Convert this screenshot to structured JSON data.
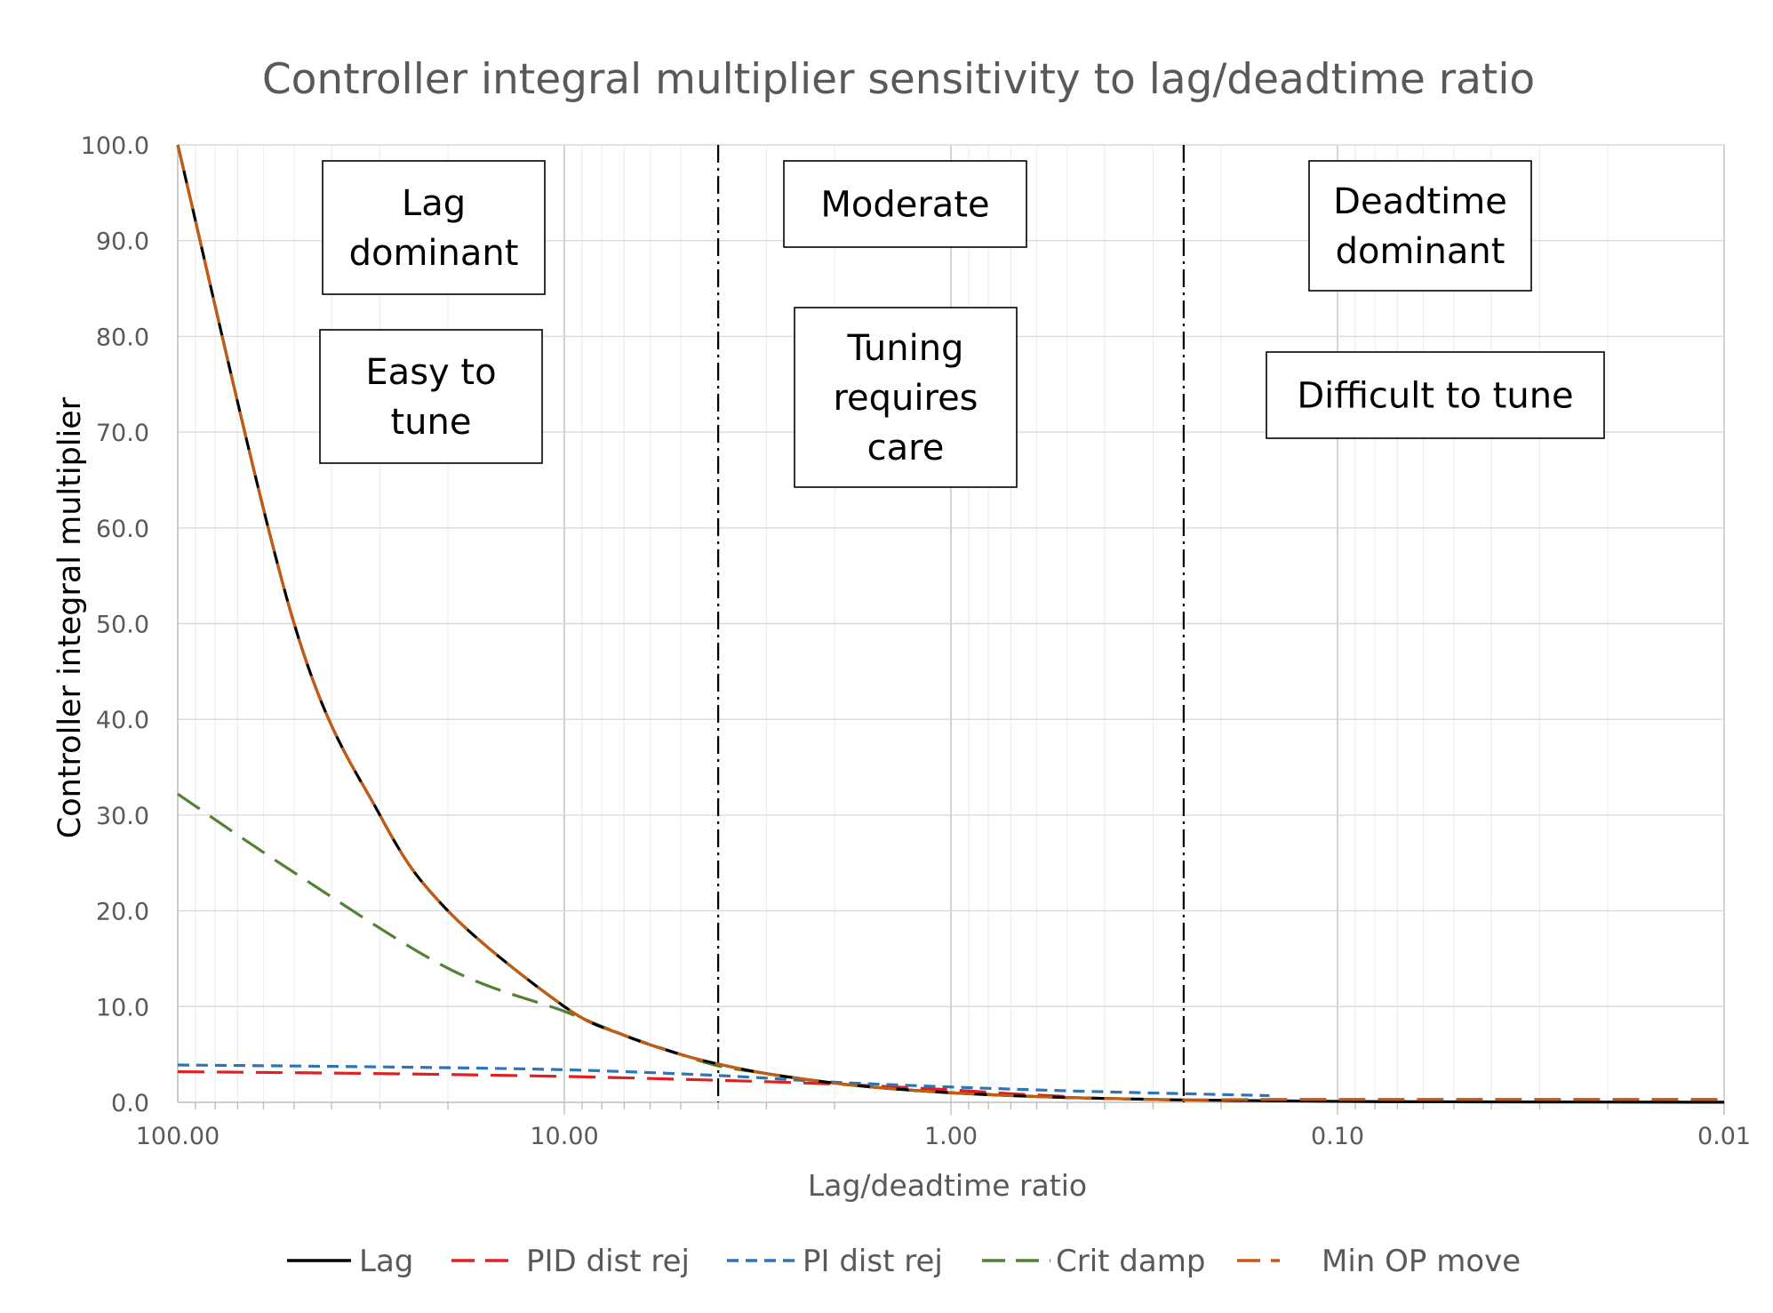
{
  "chart_data": {
    "type": "line",
    "title": "Controller integral multiplier sensitivity to lag/deadtime ratio",
    "xlabel": "Lag/deadtime ratio",
    "ylabel": "Controller integral multiplier",
    "x_scale": "log",
    "x_reversed": true,
    "xlim": [
      100,
      0.01
    ],
    "ylim": [
      0,
      100
    ],
    "x_ticks": [
      100,
      10,
      1,
      0.1,
      0.01
    ],
    "x_tick_labels": [
      "100.00",
      "10.00",
      "1.00",
      "0.10",
      "0.01"
    ],
    "y_ticks": [
      0,
      10,
      20,
      30,
      40,
      50,
      60,
      70,
      80,
      90,
      100
    ],
    "y_tick_labels": [
      "0.0",
      "10.0",
      "20.0",
      "30.0",
      "40.0",
      "50.0",
      "60.0",
      "70.0",
      "80.0",
      "90.0",
      "100.0"
    ],
    "grid": true,
    "legend_position": "bottom",
    "series": [
      {
        "name": "Lag",
        "color": "#000000",
        "dash": "solid",
        "x": [
          100,
          50,
          30,
          20,
          10,
          7,
          5,
          4,
          3,
          2,
          1.5,
          1,
          0.7,
          0.5,
          0.3,
          0.25,
          0.1,
          0.05,
          0.01
        ],
        "y": [
          100,
          50,
          30,
          20,
          10,
          7,
          5,
          4,
          3,
          2,
          1.5,
          1,
          0.7,
          0.5,
          0.3,
          0.25,
          0.1,
          0.05,
          0.01
        ]
      },
      {
        "name": "PID dist rej",
        "color": "#e02020",
        "dash": "long-dash",
        "x": [
          100,
          30,
          10,
          4,
          2,
          1,
          0.7,
          0.5
        ],
        "y": [
          3.2,
          3.0,
          2.7,
          2.3,
          1.9,
          1.3,
          0.9,
          0.6
        ]
      },
      {
        "name": "PI dist rej",
        "color": "#2e75b6",
        "dash": "short-dash",
        "x": [
          100,
          30,
          10,
          4,
          2,
          1,
          0.5,
          0.25,
          0.15
        ],
        "y": [
          3.9,
          3.7,
          3.4,
          2.8,
          2.1,
          1.6,
          1.2,
          0.9,
          0.7
        ]
      },
      {
        "name": "Crit damp",
        "color": "#548235",
        "dash": "long-dash",
        "x": [
          100,
          50,
          20,
          10,
          7,
          5,
          4,
          3,
          2,
          1.5,
          1,
          0.5,
          0.25
        ],
        "y": [
          32.2,
          24.0,
          14.0,
          9.5,
          7.0,
          5.0,
          3.8,
          3.0,
          2.0,
          1.5,
          1.0,
          0.5,
          0.25
        ]
      },
      {
        "name": "Min OP move",
        "color": "#c55a11",
        "dash": "long-dash",
        "x": [
          100,
          50,
          30,
          20,
          10,
          7,
          5,
          4,
          3,
          2,
          1.5,
          1,
          0.7,
          0.5,
          0.3,
          0.25,
          0.15,
          0.1,
          0.05,
          0.01
        ],
        "y": [
          100,
          50,
          30,
          20,
          10,
          7,
          5,
          4,
          3,
          2,
          1.5,
          1,
          0.7,
          0.5,
          0.3,
          0.25,
          0.3,
          0.3,
          0.3,
          0.3
        ]
      }
    ],
    "reference_lines": [
      {
        "x": 4,
        "style": "dash-dot"
      },
      {
        "x": 0.25,
        "style": "dash-dot"
      }
    ],
    "annotations": [
      {
        "id": "lag-dominant",
        "lines": [
          "Lag",
          "dominant"
        ]
      },
      {
        "id": "easy-to-tune",
        "lines": [
          "Easy to",
          "tune"
        ]
      },
      {
        "id": "moderate",
        "lines": [
          "Moderate"
        ]
      },
      {
        "id": "tuning-requires-care",
        "lines": [
          "Tuning",
          "requires",
          "care"
        ]
      },
      {
        "id": "deadtime-dominant",
        "lines": [
          "Deadtime",
          "dominant"
        ]
      },
      {
        "id": "difficult-to-tune",
        "lines": [
          "Difficult to tune"
        ]
      }
    ]
  }
}
